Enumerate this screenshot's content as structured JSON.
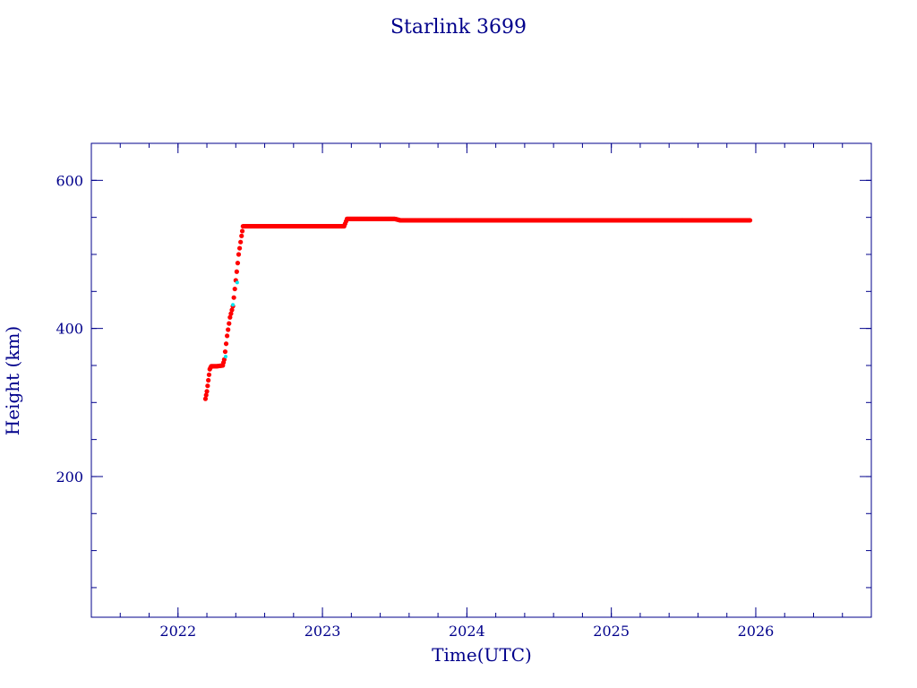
{
  "chart_data": {
    "type": "scatter",
    "title": "Starlink 3699",
    "xlabel": "Time(UTC)",
    "ylabel": "Height (km)",
    "xlim": [
      2021.4,
      2026.8
    ],
    "ylim": [
      10,
      650
    ],
    "x_major_ticks": [
      2022,
      2023,
      2024,
      2025,
      2026
    ],
    "x_minor_step": 0.2,
    "y_major_ticks": [
      200,
      400,
      600
    ],
    "y_minor_step": 50,
    "grid": false,
    "colors": {
      "axes": "#00008b",
      "points": "#ff0000",
      "highlight_points": "#00e5ee"
    },
    "series": [
      {
        "values": [
          [
            2022.19,
            305
          ],
          [
            2022.2,
            315
          ],
          [
            2022.21,
            330
          ],
          [
            2022.22,
            345
          ],
          [
            2022.23,
            349
          ],
          [
            2022.27,
            349
          ],
          [
            2022.31,
            350
          ],
          [
            2022.32,
            358
          ],
          [
            2022.34,
            390
          ],
          [
            2022.36,
            415
          ],
          [
            2022.38,
            430
          ],
          [
            2022.4,
            465
          ],
          [
            2022.42,
            500
          ],
          [
            2022.44,
            525
          ],
          [
            2022.45,
            538
          ],
          [
            2022.6,
            538
          ],
          [
            2022.8,
            538
          ],
          [
            2023.0,
            538
          ],
          [
            2023.15,
            538
          ],
          [
            2023.17,
            548
          ],
          [
            2023.3,
            548
          ],
          [
            2023.5,
            548
          ],
          [
            2023.54,
            546
          ],
          [
            2023.8,
            546
          ],
          [
            2024.0,
            546
          ],
          [
            2024.5,
            546
          ],
          [
            2025.0,
            546
          ],
          [
            2025.5,
            546
          ],
          [
            2025.96,
            546
          ]
        ]
      }
    ],
    "highlight_values": [
      [
        2022.33,
        362
      ],
      [
        2022.38,
        432
      ],
      [
        2022.41,
        462
      ]
    ]
  }
}
